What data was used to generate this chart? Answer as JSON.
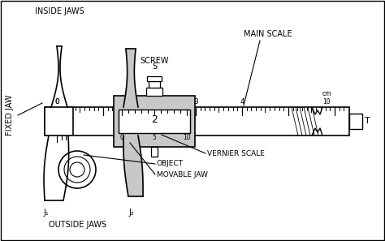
{
  "bg_color": "#ffffff",
  "lc": "#000000",
  "gray": "#c8c8c8",
  "figsize": [
    4.74,
    2.97
  ],
  "dpi": 100,
  "labels": {
    "inside_jaws": "INSIDE JAWS",
    "screw": "SCREW",
    "screw_s": "S",
    "main_scale": "MAIN SCALE",
    "fixed_jaw": "FIXED JAW",
    "vernier_scale": "VERNIER SCALE",
    "object": "OBJECT",
    "movable_jaw": "MOVABLE JAW",
    "outside_jaws": "OUTSIDE JAWS",
    "T": "T",
    "cm10": "cm\n10",
    "j1": "J₁",
    "j2": "J₂",
    "zero": "0",
    "two": "2",
    "three": "3",
    "four": "4",
    "vs0": "0",
    "vs5": "5",
    "vs10": "10"
  }
}
